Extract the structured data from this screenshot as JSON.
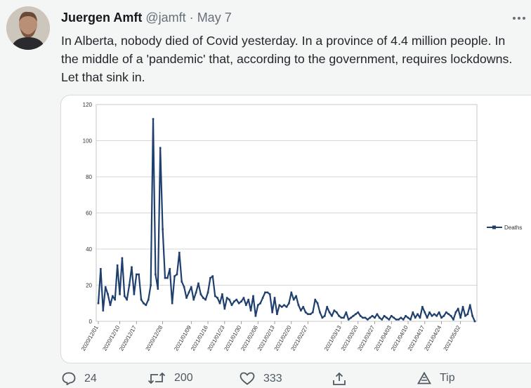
{
  "tweet": {
    "author": "Juergen Amft",
    "handle": "@jamft",
    "separator": "·",
    "date": "May 7",
    "text": "In Alberta, nobody died of Covid yesterday. In a province of 4.4 million people. In the middle of a 'pandemic' that, according to the government, requires lockdowns. Let that sink in.",
    "more_icon": "more-horizontal-icon"
  },
  "actions": {
    "reply_count": "24",
    "retweet_count": "200",
    "like_count": "333",
    "tip_label": "Tip"
  },
  "chart_data": {
    "type": "line",
    "title": "",
    "xlabel": "",
    "ylabel": "",
    "ylim": [
      0,
      120
    ],
    "yticks": [
      0,
      20,
      40,
      60,
      80,
      100,
      120
    ],
    "xtick_labels": [
      "2020/12/01",
      "2020/12/10",
      "2020/12/17",
      "2020/12/28",
      "2021/01/09",
      "2021/01/16",
      "2021/01/23",
      "2021/01/30",
      "2021/02/06",
      "2021/02/13",
      "2021/02/20",
      "2021/02/27",
      "2021/03/13",
      "2021/03/20",
      "2021/03/27",
      "2021/04/03",
      "2021/04/10",
      "2021/04/17",
      "2021/04/24",
      "2021/05/02"
    ],
    "xtick_positions": [
      0,
      9,
      16,
      27,
      39,
      46,
      53,
      60,
      67,
      74,
      81,
      88,
      102,
      109,
      116,
      123,
      130,
      137,
      144,
      152
    ],
    "grid": true,
    "legend_position": "right",
    "color": "#1f3f6e",
    "series": [
      {
        "name": "Deaths",
        "values": [
          10,
          29,
          6,
          19,
          15,
          9,
          14,
          12,
          31,
          15,
          35,
          14,
          12,
          20,
          30,
          15,
          26,
          26,
          12,
          10,
          9,
          12,
          20,
          112,
          26,
          18,
          96,
          51,
          24,
          24,
          29,
          10,
          25,
          26,
          38,
          22,
          19,
          13,
          16,
          19,
          12,
          16,
          21,
          15,
          13,
          12,
          16,
          24,
          25,
          14,
          13,
          10,
          15,
          7,
          13,
          12,
          9,
          11,
          12,
          10,
          11,
          13,
          9,
          12,
          6,
          14,
          3,
          9,
          10,
          13,
          16,
          16,
          15,
          5,
          13,
          4,
          9,
          8,
          9,
          8,
          10,
          16,
          12,
          14,
          9,
          6,
          8,
          5,
          4,
          4,
          5,
          12,
          10,
          5,
          2,
          3,
          8,
          5,
          3,
          6,
          5,
          3,
          2,
          2,
          5,
          1,
          2,
          3,
          4,
          5,
          3,
          2,
          2,
          1,
          2,
          3,
          2,
          4,
          2,
          1,
          3,
          2,
          1,
          3,
          2,
          1,
          1,
          2,
          1,
          3,
          2,
          1,
          5,
          2,
          4,
          2,
          8,
          5,
          2,
          5,
          3,
          4,
          3,
          5,
          2,
          3,
          5,
          4,
          3,
          1,
          5,
          7,
          2,
          8,
          3,
          4,
          9,
          3,
          0
        ]
      }
    ]
  }
}
